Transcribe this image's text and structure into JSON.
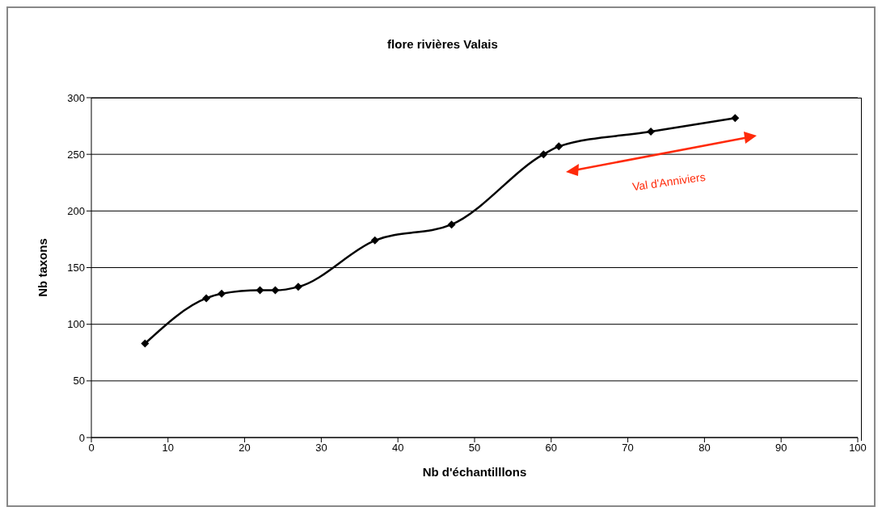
{
  "chart_data": {
    "type": "line",
    "title": "flore rivières Valais",
    "xlabel": "Nb d'échantilllons",
    "ylabel": "Nb taxons",
    "x": [
      7,
      15,
      17,
      22,
      24,
      27,
      37,
      47,
      59,
      61,
      73,
      84
    ],
    "series": [
      {
        "color": "#000000",
        "values": [
          83,
          123,
          127,
          130,
          130,
          133,
          174,
          188,
          250,
          257,
          270,
          282
        ]
      }
    ],
    "xlim": [
      0,
      100
    ],
    "xticks": [
      0,
      10,
      20,
      30,
      40,
      50,
      60,
      70,
      80,
      90,
      100
    ],
    "ylim": [
      0,
      300
    ],
    "yticks": [
      0,
      50,
      100,
      150,
      200,
      250,
      300
    ],
    "grid": "y",
    "legend": false,
    "marker": "diamond",
    "line_style": "solid",
    "annotations": [
      "Val d'Anniviers"
    ]
  }
}
